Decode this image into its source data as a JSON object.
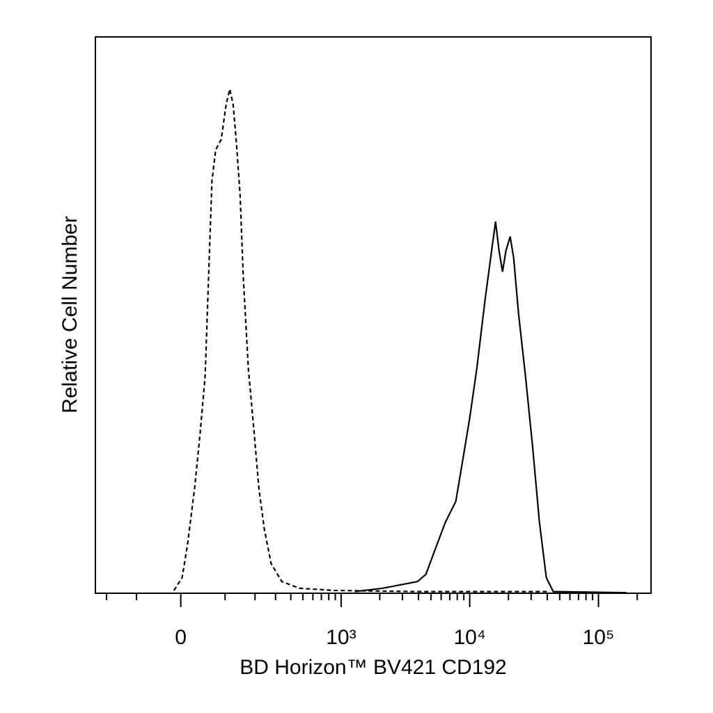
{
  "chart_data": {
    "type": "line",
    "xscale": "biexponential",
    "x_label": "BD Horizon™ BV421 CD192",
    "y_label": "Relative Cell Number",
    "xlim": [
      -250,
      256000
    ],
    "ylim": [
      0,
      100
    ],
    "xticks": [
      0,
      {
        "value": 1000,
        "label": "10³"
      },
      {
        "value": 10000,
        "label": "10⁴"
      },
      {
        "value": 100000,
        "label": "10⁵"
      }
    ],
    "xminorticks": [
      -200,
      -100,
      100,
      200,
      300,
      400,
      500,
      600,
      700,
      800,
      900,
      2000,
      3000,
      4000,
      5000,
      6000,
      7000,
      8000,
      9000,
      20000,
      30000,
      40000,
      50000,
      60000,
      70000,
      80000,
      90000,
      200000
    ],
    "series": [
      {
        "color": "#000000",
        "line_style": "dashed",
        "x": [
          -14,
          2.8,
          14.2,
          28.7,
          40.6,
          51.3,
          59,
          67,
          76,
          90,
          103,
          113,
          123,
          134,
          145,
          156,
          174,
          196,
          216,
          241,
          276,
          338,
          468,
          879,
          3930,
          41800
        ],
        "values": [
          0.5,
          2.8,
          9.0,
          19.0,
          29.0,
          39.0,
          56.6,
          74.1,
          79.7,
          81.6,
          87.9,
          90.6,
          87.9,
          80.4,
          71.6,
          56.6,
          40.3,
          29.0,
          19.0,
          11.5,
          5.3,
          2.1,
          0.9,
          0.5,
          0.3,
          0.3
        ]
      },
      {
        "color": "#000000",
        "line_style": "solid",
        "x": [
          1280,
          2110,
          3930,
          4570,
          5370,
          6480,
          7800,
          8840,
          10000,
          11340,
          13170,
          14550,
          15880,
          16900,
          17980,
          19140,
          20610,
          21950,
          23940,
          27130,
          30730,
          34800,
          39330,
          44570,
          164700
        ],
        "values": [
          0.3,
          0.9,
          2.1,
          3.4,
          7.8,
          12.8,
          16.5,
          24.0,
          31.5,
          40.3,
          52.8,
          60.3,
          66.8,
          61.6,
          57.8,
          61.6,
          64.1,
          60.3,
          50.3,
          39.0,
          26.5,
          12.8,
          2.8,
          0.3,
          0.1
        ]
      }
    ]
  }
}
